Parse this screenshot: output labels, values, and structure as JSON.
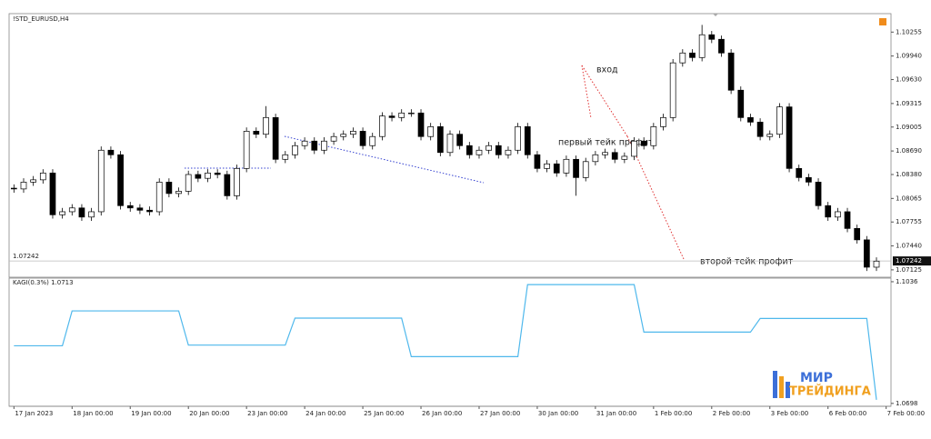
{
  "chart_data": [
    {
      "type": "candlestick",
      "title": "!STD_EURUSD,H4",
      "open": [
        1.082,
        1.0819,
        1.0828,
        1.0831,
        1.084,
        1.0785,
        1.0789,
        1.0794,
        1.0782,
        1.0789,
        1.087,
        1.0864,
        1.0797,
        1.0794,
        1.0791,
        1.0789,
        1.0828,
        1.0813,
        1.0816,
        1.0838,
        1.0833,
        1.084,
        1.0838,
        1.081,
        1.0846,
        1.0895,
        1.0891,
        1.0913,
        1.0858,
        1.0864,
        1.0876,
        1.0882,
        1.087,
        1.0882,
        1.0888,
        1.0891,
        1.0895,
        1.0876,
        1.0888,
        1.0915,
        1.0913,
        1.0919,
        1.0919,
        1.0888,
        1.0901,
        1.0867,
        1.0891,
        1.0876,
        1.0864,
        1.087,
        1.0876,
        1.0864,
        1.087,
        1.0901,
        1.0864,
        1.0846,
        1.0852,
        1.084,
        1.0858,
        1.0834,
        1.0855,
        1.0864,
        1.0867,
        1.0858,
        1.0862,
        1.0882,
        1.0876,
        1.0901,
        1.0913,
        1.0985,
        1.0998,
        1.0992,
        1.1022,
        1.1016,
        1.0998,
        1.0949,
        1.0913,
        1.0907,
        1.0888,
        1.0891,
        1.0927,
        1.0846,
        1.0834,
        1.0828,
        1.0797,
        1.0782,
        1.0789,
        1.0767,
        1.0752,
        1.0716
      ],
      "high": [
        1.0825,
        1.0833,
        1.0836,
        1.0845,
        1.0845,
        1.0794,
        1.0799,
        1.0799,
        1.0794,
        1.0875,
        1.0875,
        1.0869,
        1.0802,
        1.0799,
        1.0796,
        1.0833,
        1.0833,
        1.0821,
        1.0843,
        1.0843,
        1.0845,
        1.0845,
        1.0843,
        1.0851,
        1.09,
        1.09,
        1.0928,
        1.0918,
        1.0869,
        1.0881,
        1.0887,
        1.0887,
        1.0887,
        1.0893,
        1.0896,
        1.09,
        1.09,
        1.0893,
        1.092,
        1.092,
        1.0924,
        1.0924,
        1.0924,
        1.0906,
        1.0906,
        1.0896,
        1.0896,
        1.0881,
        1.0875,
        1.0881,
        1.0881,
        1.0875,
        1.0906,
        1.0906,
        1.0869,
        1.0857,
        1.0857,
        1.0863,
        1.0863,
        1.086,
        1.0869,
        1.0872,
        1.0872,
        1.0867,
        1.0887,
        1.0887,
        1.0906,
        1.0918,
        1.099,
        1.1003,
        1.1003,
        1.1035,
        1.1027,
        1.1021,
        1.1003,
        1.0954,
        1.0918,
        1.0912,
        1.0896,
        1.0932,
        1.0932,
        1.0851,
        1.0839,
        1.0833,
        1.0802,
        1.0794,
        1.0794,
        1.0772,
        1.0757,
        1.0729
      ],
      "low": [
        1.0814,
        1.0814,
        1.0823,
        1.0826,
        1.078,
        1.078,
        1.0784,
        1.0777,
        1.0777,
        1.0784,
        1.0859,
        1.0792,
        1.0789,
        1.0786,
        1.0784,
        1.0784,
        1.0808,
        1.0808,
        1.0811,
        1.0828,
        1.0828,
        1.0833,
        1.0805,
        1.0805,
        1.0841,
        1.0886,
        1.0886,
        1.0853,
        1.0853,
        1.0859,
        1.0871,
        1.0865,
        1.0865,
        1.0877,
        1.0883,
        1.0886,
        1.0871,
        1.0871,
        1.0883,
        1.0908,
        1.0908,
        1.0914,
        1.0883,
        1.0883,
        1.0862,
        1.0862,
        1.0871,
        1.0859,
        1.0859,
        1.0865,
        1.0859,
        1.0859,
        1.0865,
        1.0859,
        1.0841,
        1.0841,
        1.0835,
        1.0835,
        1.081,
        1.0829,
        1.085,
        1.0859,
        1.0853,
        1.0853,
        1.0857,
        1.0871,
        1.0871,
        1.0896,
        1.0908,
        1.098,
        1.0987,
        1.0987,
        1.1011,
        1.0993,
        1.0944,
        1.0908,
        1.0902,
        1.0883,
        1.0883,
        1.0886,
        1.0841,
        1.0829,
        1.0823,
        1.0792,
        1.0777,
        1.0777,
        1.0762,
        1.0747,
        1.0711,
        1.0711
      ],
      "close": [
        1.0819,
        1.0828,
        1.0831,
        1.084,
        1.0785,
        1.0789,
        1.0794,
        1.0782,
        1.0789,
        1.087,
        1.0864,
        1.0797,
        1.0794,
        1.0791,
        1.0789,
        1.0828,
        1.0813,
        1.0816,
        1.0838,
        1.0833,
        1.084,
        1.0838,
        1.081,
        1.0846,
        1.0895,
        1.0891,
        1.0913,
        1.0858,
        1.0864,
        1.0876,
        1.0882,
        1.087,
        1.0882,
        1.0888,
        1.0891,
        1.0895,
        1.0876,
        1.0888,
        1.0915,
        1.0913,
        1.0919,
        1.0919,
        1.0888,
        1.0901,
        1.0867,
        1.0891,
        1.0876,
        1.0864,
        1.087,
        1.0876,
        1.0864,
        1.087,
        1.0901,
        1.0864,
        1.0846,
        1.0852,
        1.084,
        1.0858,
        1.0834,
        1.0855,
        1.0864,
        1.0867,
        1.0858,
        1.0862,
        1.0882,
        1.0876,
        1.0901,
        1.0913,
        1.0985,
        1.0998,
        1.0992,
        1.1022,
        1.1016,
        1.0998,
        1.0949,
        1.0913,
        1.0907,
        1.0888,
        1.0891,
        1.0927,
        1.0846,
        1.0834,
        1.0828,
        1.0797,
        1.0782,
        1.0789,
        1.0767,
        1.0752,
        1.0716,
        1.0724
      ],
      "ylim": [
        1.07028,
        1.10498
      ],
      "yticks": [
        1.10255,
        {
          "value": 1.0994,
          "label": "1.09940"
        },
        {
          "value": 1.0963,
          "label": "1.09630"
        },
        1.09315,
        1.09005,
        {
          "value": 1.0869,
          "label": "1.08690"
        },
        {
          "value": 1.0838,
          "label": "1.08380"
        },
        1.08065,
        1.07755,
        {
          "value": 1.0744,
          "label": "1.07440"
        },
        1.07125
      ],
      "last_price": 1.07242,
      "xlim": [
        -0.5,
        90.5
      ],
      "xticks": [
        {
          "value": 0,
          "label": "17 Jan 2023"
        },
        {
          "value": 6,
          "label": "18 Jan 00:00"
        },
        {
          "value": 12,
          "label": "19 Jan 00:00"
        },
        {
          "value": 18,
          "label": "20 Jan 00:00"
        },
        {
          "value": 24,
          "label": "23 Jan 00:00"
        },
        {
          "value": 30,
          "label": "24 Jan 00:00"
        },
        {
          "value": 36,
          "label": "25 Jan 00:00"
        },
        {
          "value": 42,
          "label": "26 Jan 00:00"
        },
        {
          "value": 48,
          "label": "27 Jan 00:00"
        },
        {
          "value": 54,
          "label": "30 Jan 00:00"
        },
        {
          "value": 60,
          "label": "31 Jan 00:00"
        },
        {
          "value": 66,
          "label": "1 Feb 00:00"
        },
        {
          "value": 72,
          "label": "2 Feb 00:00"
        },
        {
          "value": 78,
          "label": "3 Feb 00:00"
        },
        {
          "value": 84,
          "label": "6 Feb 00:00"
        },
        {
          "value": 90,
          "label": "7 Feb 00:00"
        }
      ],
      "annotations": [
        "вход",
        "первый тейк профит",
        "второй тейк профит"
      ]
    },
    {
      "type": "line",
      "title": "KAGI(0.3%) 1.0713",
      "x": [
        0,
        5,
        6,
        17,
        18,
        28,
        29,
        40,
        41,
        52,
        53,
        64,
        65,
        76,
        77,
        88,
        89
      ],
      "values": [
        1.0858,
        1.0858,
        1.0955,
        1.0955,
        1.086,
        1.086,
        1.0935,
        1.0935,
        1.0828,
        1.0828,
        1.1028,
        1.1028,
        1.0896,
        1.0896,
        1.0934,
        1.0934,
        1.0708
      ],
      "color": "#4fb8ec",
      "ylim": [
        1.069,
        1.1046
      ],
      "yticks": [
        1.1036,
        1.0698
      ]
    }
  ],
  "watermark": {
    "line1": "МИР",
    "line2": "ТРЕЙДИНГА"
  }
}
